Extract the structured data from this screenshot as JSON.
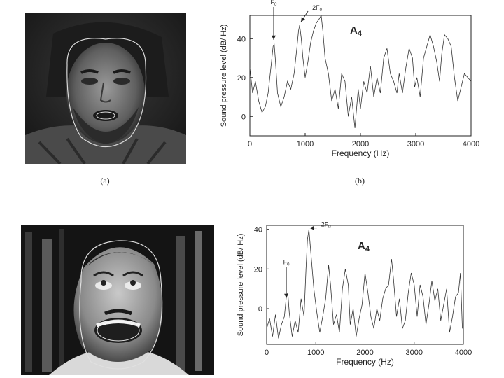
{
  "captions": {
    "a": "(a)",
    "b": "(b)"
  },
  "photos": [
    {
      "name": "singer-photo-top",
      "description_tag": "photo"
    },
    {
      "name": "singer-photo-bottom",
      "description_tag": "photo"
    }
  ],
  "chart_data": [
    {
      "type": "line",
      "title": "A4",
      "xlabel": "Frequency (Hz)",
      "ylabel": "Sound pressure level (dB/ Hz)",
      "xlim": [
        0,
        4000
      ],
      "ylim": [
        -10,
        52
      ],
      "xticks": [
        0,
        1000,
        2000,
        3000,
        4000
      ],
      "yticks": [
        0,
        20,
        40
      ],
      "grid": false,
      "annotations": [
        {
          "label": "F0",
          "x": 430,
          "y": 38
        },
        {
          "label": "2F0",
          "x": 900,
          "y": 48
        }
      ],
      "x": [
        0,
        50,
        100,
        160,
        220,
        280,
        330,
        380,
        420,
        440,
        460,
        500,
        560,
        620,
        680,
        740,
        800,
        850,
        880,
        900,
        930,
        960,
        1000,
        1050,
        1100,
        1150,
        1200,
        1250,
        1290,
        1320,
        1360,
        1420,
        1480,
        1540,
        1600,
        1660,
        1720,
        1780,
        1840,
        1900,
        1960,
        2000,
        2060,
        2120,
        2180,
        2240,
        2300,
        2360,
        2420,
        2480,
        2540,
        2600,
        2660,
        2700,
        2760,
        2820,
        2880,
        2940,
        2980,
        3020,
        3080,
        3140,
        3200,
        3260,
        3320,
        3380,
        3430,
        3470,
        3520,
        3580,
        3640,
        3700,
        3760,
        3820,
        3880,
        3940,
        4000
      ],
      "y": [
        25,
        12,
        18,
        8,
        2,
        5,
        12,
        25,
        36,
        37,
        30,
        12,
        5,
        10,
        18,
        14,
        22,
        35,
        44,
        47,
        40,
        30,
        20,
        28,
        38,
        44,
        48,
        50,
        52,
        44,
        30,
        22,
        8,
        14,
        4,
        22,
        18,
        0,
        10,
        -6,
        14,
        4,
        18,
        12,
        26,
        10,
        20,
        12,
        30,
        35,
        22,
        18,
        12,
        22,
        12,
        25,
        35,
        30,
        15,
        20,
        10,
        30,
        36,
        42,
        36,
        28,
        18,
        32,
        42,
        40,
        36,
        20,
        8,
        15,
        22,
        20,
        18
      ]
    },
    {
      "type": "line",
      "title": "A4",
      "xlabel": "Frequency (Hz)",
      "ylabel": "Sound pressure level (dB/ Hz)",
      "xlim": [
        0,
        4000
      ],
      "ylim": [
        -18,
        42
      ],
      "xticks": [
        0,
        1000,
        2000,
        3000,
        4000
      ],
      "yticks": [
        0,
        20,
        40
      ],
      "grid": false,
      "annotations": [
        {
          "label": "F0",
          "x": 400,
          "y": 4
        },
        {
          "label": "2F0",
          "x": 850,
          "y": 40
        }
      ],
      "x": [
        0,
        60,
        120,
        180,
        240,
        300,
        360,
        400,
        430,
        460,
        520,
        580,
        640,
        700,
        760,
        800,
        830,
        860,
        900,
        960,
        1020,
        1080,
        1140,
        1200,
        1260,
        1300,
        1360,
        1420,
        1480,
        1540,
        1600,
        1660,
        1700,
        1760,
        1820,
        1880,
        1940,
        2000,
        2060,
        2120,
        2180,
        2240,
        2300,
        2360,
        2420,
        2480,
        2540,
        2580,
        2640,
        2700,
        2760,
        2820,
        2880,
        2940,
        3000,
        3060,
        3120,
        3180,
        3240,
        3300,
        3360,
        3420,
        3480,
        3540,
        3600,
        3660,
        3720,
        3780,
        3840,
        3900,
        3940,
        3980
      ],
      "y": [
        -10,
        -5,
        -14,
        -3,
        -15,
        -8,
        -4,
        6,
        8,
        -2,
        -14,
        -6,
        -12,
        5,
        -4,
        20,
        35,
        40,
        28,
        10,
        -2,
        -12,
        -4,
        5,
        22,
        12,
        -8,
        -3,
        -12,
        10,
        20,
        12,
        -8,
        0,
        -14,
        -5,
        2,
        18,
        8,
        -4,
        -10,
        0,
        -6,
        5,
        10,
        12,
        25,
        15,
        -4,
        5,
        -10,
        -6,
        8,
        18,
        12,
        -4,
        12,
        6,
        -8,
        2,
        14,
        4,
        10,
        -6,
        2,
        10,
        -12,
        -4,
        6,
        8,
        18,
        -10
      ]
    }
  ]
}
